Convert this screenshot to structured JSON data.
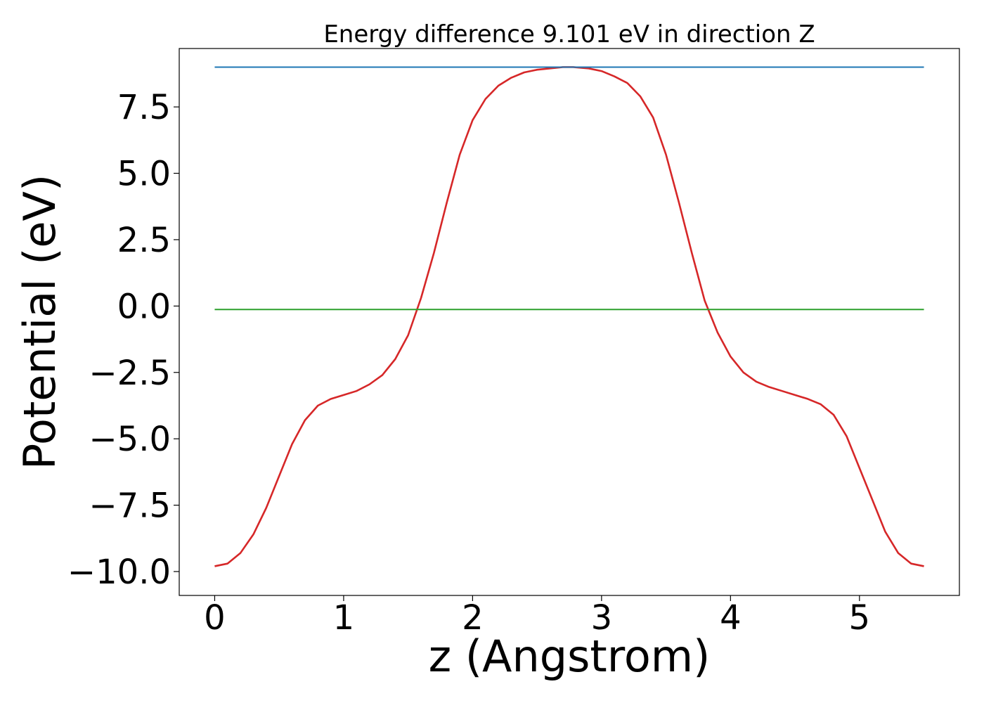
{
  "chart_data": {
    "type": "line",
    "title": "Energy difference 9.101 eV in direction Z",
    "xlabel": "z (Angstrom)",
    "ylabel": "Potential (eV)",
    "xlim": [
      -0.275,
      5.775
    ],
    "ylim": [
      -10.9,
      9.7
    ],
    "xticks": [
      0,
      1,
      2,
      3,
      4,
      5
    ],
    "xtick_labels": [
      "0",
      "1",
      "2",
      "3",
      "4",
      "5"
    ],
    "yticks": [
      -10.0,
      -7.5,
      -5.0,
      -2.5,
      0.0,
      2.5,
      5.0,
      7.5
    ],
    "ytick_labels": [
      "−10.0",
      "−7.5",
      "−5.0",
      "−2.5",
      "0.0",
      "2.5",
      "5.0",
      "7.5"
    ],
    "grid": false,
    "series": [
      {
        "color": "#d62728",
        "x": [
          0.0,
          0.1,
          0.2,
          0.3,
          0.4,
          0.5,
          0.6,
          0.7,
          0.8,
          0.9,
          1.0,
          1.1,
          1.2,
          1.3,
          1.4,
          1.5,
          1.6,
          1.7,
          1.8,
          1.9,
          2.0,
          2.1,
          2.2,
          2.3,
          2.4,
          2.5,
          2.6,
          2.7,
          2.78,
          2.9,
          3.0,
          3.1,
          3.2,
          3.3,
          3.4,
          3.5,
          3.6,
          3.7,
          3.8,
          3.9,
          4.0,
          4.1,
          4.2,
          4.3,
          4.4,
          4.5,
          4.6,
          4.7,
          4.8,
          4.9,
          5.0,
          5.1,
          5.2,
          5.3,
          5.4,
          5.5
        ],
        "y": [
          -9.8,
          -9.7,
          -9.3,
          -8.6,
          -7.6,
          -6.4,
          -5.2,
          -4.3,
          -3.75,
          -3.5,
          -3.35,
          -3.2,
          -2.95,
          -2.6,
          -2.0,
          -1.1,
          0.3,
          2.0,
          3.9,
          5.7,
          7.0,
          7.8,
          8.3,
          8.6,
          8.8,
          8.9,
          8.95,
          9.0,
          9.0,
          8.95,
          8.85,
          8.65,
          8.4,
          7.9,
          7.1,
          5.7,
          3.9,
          2.0,
          0.2,
          -1.0,
          -1.9,
          -2.5,
          -2.85,
          -3.05,
          -3.2,
          -3.35,
          -3.5,
          -3.7,
          -4.1,
          -4.9,
          -6.1,
          -7.3,
          -8.5,
          -9.3,
          -9.7,
          -9.8
        ]
      },
      {
        "color": "#1f77b4",
        "x": [
          0.0,
          5.5
        ],
        "y": [
          9.0,
          9.0
        ]
      },
      {
        "color": "#2ca02c",
        "x": [
          0.0,
          5.5
        ],
        "y": [
          -0.13,
          -0.13
        ]
      }
    ]
  }
}
